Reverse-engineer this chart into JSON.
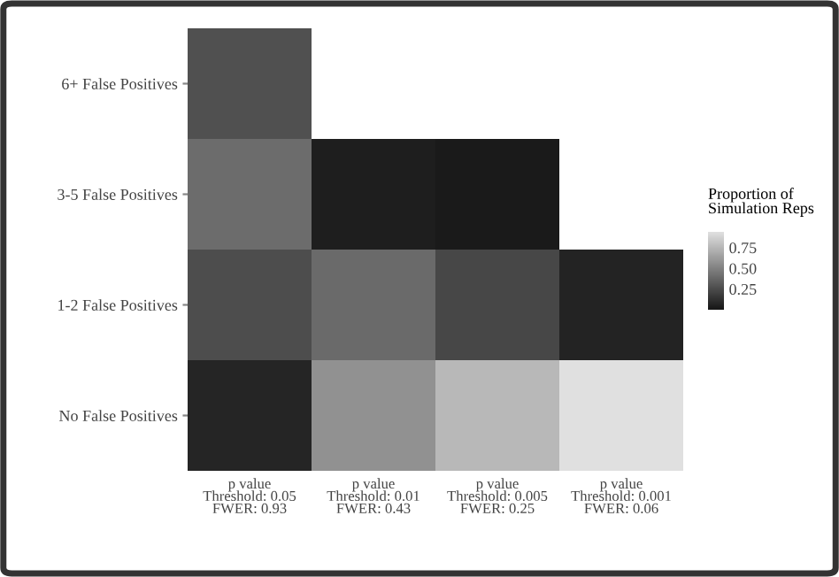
{
  "chart_data": {
    "type": "heatmap",
    "categories": [
      "p value\nThreshold: 0.05\nFWER: 0.93",
      "p value\nThreshold: 0.01\nFWER: 0.43",
      "p value\nThreshold: 0.005\nFWER: 0.25",
      "p value\nThreshold: 0.001\nFWER: 0.06"
    ],
    "y_categories": [
      "6+ False Positives",
      "3-5 False Positives",
      "1-2 False Positives",
      "No False Positives"
    ],
    "cells": [
      [
        0.27,
        null,
        null,
        null
      ],
      [
        0.4,
        0.04,
        0.02,
        null
      ],
      [
        0.26,
        0.39,
        0.23,
        0.06
      ],
      [
        0.07,
        0.57,
        0.75,
        0.94
      ]
    ],
    "colors": [
      "#161616",
      "#e0e0e0"
    ],
    "clim": [
      0.0,
      0.94
    ],
    "cticks": [
      {
        "value": 0.25,
        "label": "0.25"
      },
      {
        "value": 0.5,
        "label": "0.50"
      },
      {
        "value": 0.75,
        "label": "0.75"
      }
    ],
    "clabel": "Proportion of\nSimulation Reps"
  }
}
